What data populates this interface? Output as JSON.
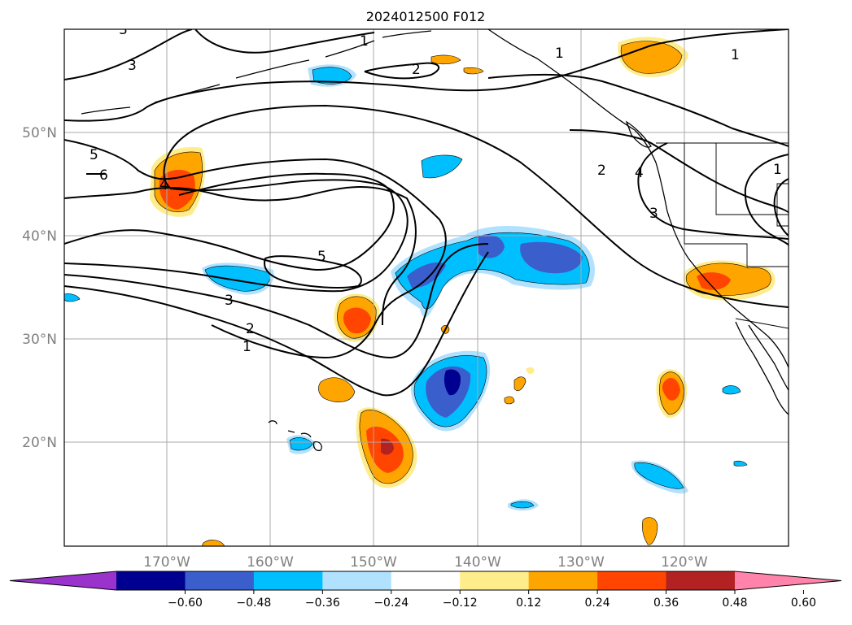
{
  "title": "2024012500 F012",
  "map": {
    "lat_labels": [
      "50°N",
      "40°N",
      "30°N",
      "20°N"
    ],
    "lon_labels": [
      "170°W",
      "160°W",
      "150°W",
      "140°W",
      "130°W",
      "120°W"
    ],
    "contour_labels": [
      "1",
      "2",
      "3",
      "4",
      "5",
      "6"
    ],
    "label_color": "#808080"
  },
  "colorbar": {
    "ticks": [
      "−0.60",
      "−0.48",
      "−0.36",
      "−0.24",
      "−0.12",
      "0.12",
      "0.24",
      "0.36",
      "0.48",
      "0.60"
    ],
    "colors": [
      "#9933cc",
      "#000090",
      "#3a5fcd",
      "#00bfff",
      "#b0e2ff",
      "#ffffff",
      "#ffec8b",
      "#ffa500",
      "#ff4500",
      "#b22222",
      "#ff83aa"
    ]
  }
}
